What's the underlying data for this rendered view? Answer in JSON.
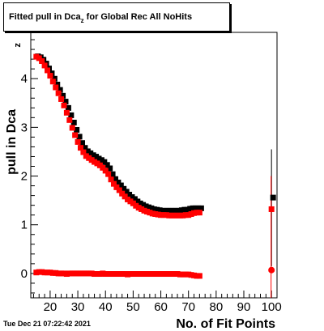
{
  "chart_data": {
    "type": "scatter",
    "title": "Fitted pull in Dca",
    "title_subscript": "z",
    "title_suffix": " for Global Rec All NoHits",
    "xlabel": "No. of Fit Points",
    "ylabel": "pull in Dca",
    "ylabel_subscript": "z",
    "xlim": [
      13,
      102
    ],
    "ylim": [
      -0.5,
      4.95
    ],
    "x_ticks": [
      20,
      30,
      40,
      50,
      60,
      70,
      80,
      90,
      100
    ],
    "y_ticks": [
      0,
      1,
      2,
      3,
      4
    ],
    "grid": false,
    "series": [
      {
        "color": "#000000",
        "x": [
          15,
          16,
          17,
          18,
          19,
          20,
          21,
          22,
          23,
          24,
          25,
          26,
          27,
          28,
          29,
          30,
          31,
          32,
          33,
          34,
          35,
          36,
          37,
          38,
          39,
          40,
          41,
          42,
          43,
          44,
          45,
          46,
          47,
          48,
          49,
          50,
          51,
          52,
          53,
          54,
          55,
          56,
          57,
          58,
          59,
          60,
          61,
          62,
          63,
          64,
          65,
          66,
          67,
          68,
          69,
          70,
          71,
          72,
          73,
          74,
          100
        ],
        "y": [
          4.45,
          4.43,
          4.38,
          4.3,
          4.2,
          4.1,
          3.99,
          3.87,
          3.76,
          3.64,
          3.52,
          3.39,
          3.24,
          3.09,
          2.94,
          2.8,
          2.67,
          2.57,
          2.5,
          2.46,
          2.42,
          2.39,
          2.35,
          2.32,
          2.28,
          2.22,
          2.15,
          2.03,
          1.93,
          1.86,
          1.8,
          1.73,
          1.67,
          1.61,
          1.56,
          1.52,
          1.47,
          1.43,
          1.4,
          1.37,
          1.35,
          1.33,
          1.31,
          1.3,
          1.29,
          1.28,
          1.28,
          1.28,
          1.28,
          1.28,
          1.28,
          1.28,
          1.29,
          1.3,
          1.3,
          1.32,
          1.33,
          1.33,
          1.33,
          1.33,
          1.55
        ]
      },
      {
        "color": "#ff0000",
        "x": [
          15,
          16,
          17,
          18,
          19,
          20,
          21,
          22,
          23,
          24,
          25,
          26,
          27,
          28,
          29,
          30,
          31,
          32,
          33,
          34,
          35,
          36,
          37,
          38,
          39,
          40,
          41,
          42,
          43,
          44,
          45,
          46,
          47,
          48,
          49,
          50,
          51,
          52,
          53,
          54,
          55,
          56,
          57,
          58,
          59,
          60,
          61,
          62,
          63,
          64,
          65,
          66,
          67,
          68,
          69,
          70,
          71,
          72,
          73,
          74,
          100
        ],
        "y": [
          4.45,
          4.42,
          4.36,
          4.27,
          4.17,
          4.06,
          3.94,
          3.82,
          3.7,
          3.58,
          3.45,
          3.3,
          3.15,
          2.99,
          2.84,
          2.7,
          2.58,
          2.49,
          2.41,
          2.37,
          2.33,
          2.29,
          2.26,
          2.22,
          2.17,
          2.11,
          2.04,
          1.93,
          1.84,
          1.77,
          1.71,
          1.64,
          1.58,
          1.52,
          1.48,
          1.44,
          1.39,
          1.35,
          1.32,
          1.29,
          1.27,
          1.25,
          1.23,
          1.22,
          1.21,
          1.2,
          1.2,
          1.2,
          1.19,
          1.19,
          1.19,
          1.19,
          1.19,
          1.19,
          1.2,
          1.2,
          1.22,
          1.24,
          1.25,
          1.25,
          1.32
        ]
      },
      {
        "color": "#ff0000",
        "x": [
          15,
          16,
          17,
          18,
          19,
          20,
          21,
          22,
          23,
          24,
          25,
          26,
          27,
          28,
          29,
          30,
          31,
          32,
          33,
          34,
          35,
          36,
          37,
          38,
          39,
          40,
          41,
          42,
          43,
          44,
          45,
          46,
          47,
          48,
          49,
          50,
          51,
          52,
          53,
          54,
          55,
          56,
          57,
          58,
          59,
          60,
          61,
          62,
          63,
          64,
          65,
          66,
          67,
          68,
          69,
          70,
          71,
          72,
          73,
          74,
          100
        ],
        "y": [
          0.02,
          0.03,
          0.03,
          0.02,
          0.02,
          0.02,
          0.01,
          0.01,
          0.0,
          0.0,
          0.0,
          -0.01,
          0.0,
          0.0,
          0.0,
          0.0,
          0.0,
          0.0,
          0.0,
          0.0,
          0.0,
          -0.01,
          -0.01,
          -0.01,
          0.0,
          -0.01,
          -0.01,
          -0.01,
          -0.01,
          -0.01,
          -0.01,
          -0.01,
          -0.01,
          -0.02,
          -0.01,
          -0.01,
          -0.01,
          -0.01,
          -0.01,
          -0.01,
          -0.01,
          -0.01,
          -0.01,
          -0.01,
          -0.01,
          -0.01,
          -0.01,
          -0.01,
          -0.01,
          -0.01,
          -0.01,
          -0.01,
          -0.02,
          -0.02,
          -0.02,
          -0.02,
          -0.03,
          -0.04,
          -0.05,
          -0.05,
          0.07
        ]
      }
    ]
  },
  "timestamp": "Tue Dec 21 07:22:42 2021"
}
